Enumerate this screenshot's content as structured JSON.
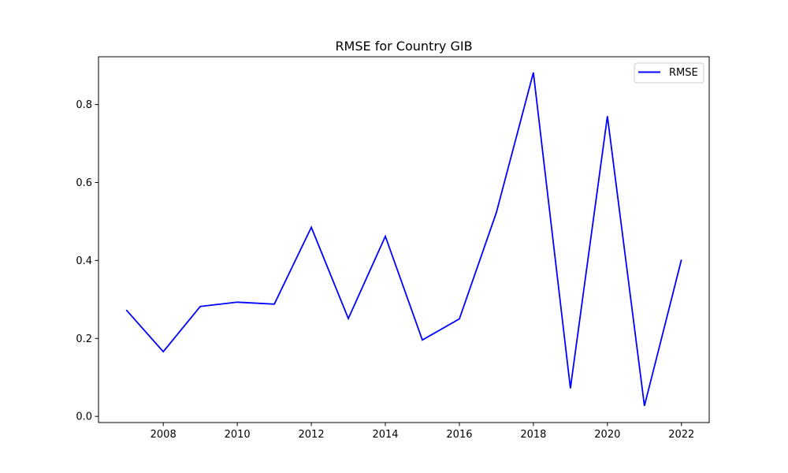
{
  "chart_data": {
    "type": "line",
    "title": "RMSE for Country GIB",
    "xlabel": "",
    "ylabel": "",
    "x": [
      2007,
      2008,
      2009,
      2010,
      2011,
      2012,
      2013,
      2014,
      2015,
      2016,
      2017,
      2018,
      2019,
      2020,
      2021,
      2022
    ],
    "series": [
      {
        "name": "RMSE",
        "color": "#0000ff",
        "values": [
          0.273,
          0.166,
          0.282,
          0.293,
          0.288,
          0.485,
          0.251,
          0.462,
          0.196,
          0.25,
          0.523,
          0.882,
          0.072,
          0.77,
          0.027,
          0.402
        ]
      }
    ],
    "xticks": [
      "2008",
      "2010",
      "2012",
      "2014",
      "2016",
      "2018",
      "2020",
      "2022"
    ],
    "yticks": [
      "0.0",
      "0.2",
      "0.4",
      "0.6",
      "0.8"
    ],
    "xlim": [
      2006.25,
      2022.75
    ],
    "ylim": [
      -0.0158,
      0.9225
    ],
    "grid": false,
    "legend_position": "upper right"
  }
}
